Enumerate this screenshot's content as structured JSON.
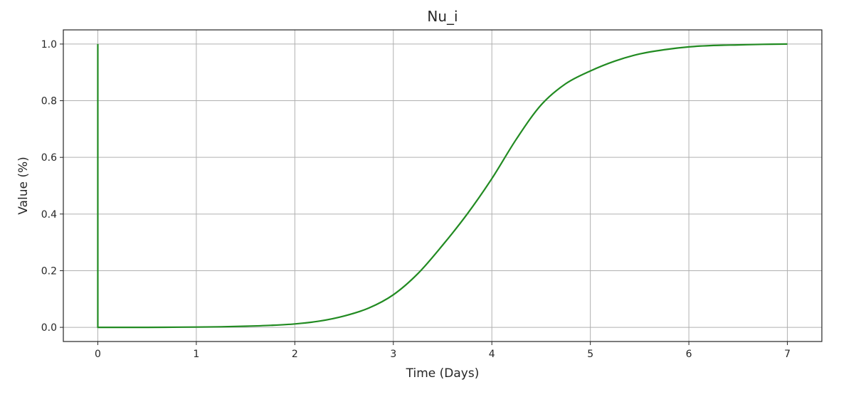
{
  "chart_data": {
    "type": "line",
    "title": "Nu_i",
    "xlabel": "Time (Days)",
    "ylabel": "Value (%)",
    "xlim": [
      -0.35,
      7.35
    ],
    "ylim": [
      -0.05,
      1.05
    ],
    "xticks": [
      0,
      1,
      2,
      3,
      4,
      5,
      6,
      7
    ],
    "xtick_labels": [
      "0",
      "1",
      "2",
      "3",
      "4",
      "5",
      "6",
      "7"
    ],
    "yticks": [
      0.0,
      0.2,
      0.4,
      0.6,
      0.8,
      1.0
    ],
    "ytick_labels": [
      "0.0",
      "0.2",
      "0.4",
      "0.6",
      "0.8",
      "1.0"
    ],
    "grid": true,
    "series": [
      {
        "color": "#228b22",
        "x": [
          0,
          0,
          0.5,
          1.0,
          1.25,
          1.5,
          1.75,
          2.0,
          2.25,
          2.5,
          2.75,
          3.0,
          3.25,
          3.5,
          3.75,
          4.0,
          4.25,
          4.5,
          4.75,
          5.0,
          5.25,
          5.5,
          5.75,
          6.0,
          6.25,
          6.5,
          6.75,
          7.0
        ],
        "y": [
          1.0,
          0.0,
          0.0,
          0.001,
          0.002,
          0.004,
          0.007,
          0.012,
          0.022,
          0.04,
          0.068,
          0.115,
          0.19,
          0.29,
          0.4,
          0.525,
          0.665,
          0.785,
          0.86,
          0.905,
          0.94,
          0.965,
          0.98,
          0.99,
          0.995,
          0.997,
          0.999,
          1.0
        ]
      }
    ]
  }
}
